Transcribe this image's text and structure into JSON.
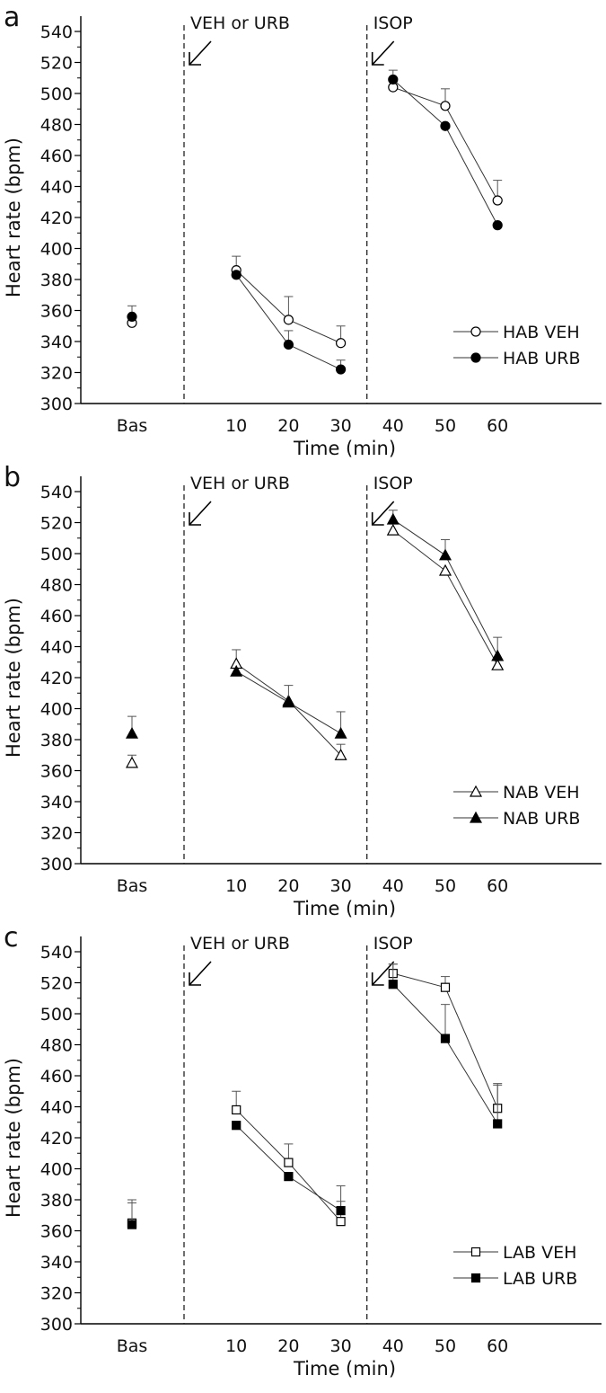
{
  "chart_data": [
    {
      "type": "line",
      "panel_label": "a",
      "ylabel": "Heart rate (bpm)",
      "xlabel": "Time (min)",
      "ylim": [
        300,
        540
      ],
      "yticks": [
        300,
        320,
        340,
        360,
        380,
        400,
        420,
        440,
        460,
        480,
        500,
        520,
        540
      ],
      "xticks": [
        {
          "label": "Bas",
          "value": -10
        },
        {
          "label": "10",
          "value": 10
        },
        {
          "label": "20",
          "value": 20
        },
        {
          "label": "30",
          "value": 30
        },
        {
          "label": "40",
          "value": 40
        },
        {
          "label": "50",
          "value": 50
        },
        {
          "label": "60",
          "value": 60
        }
      ],
      "annotations": [
        {
          "text": "VEH or URB",
          "x": 0
        },
        {
          "text": "ISOP",
          "x": 35
        }
      ],
      "legend_position": "bottom-right",
      "marker": "circle",
      "series": [
        {
          "name": "HAB VEH",
          "filled": false,
          "points": [
            {
              "x": -10,
              "y": 352,
              "err": 0,
              "connected": false
            },
            {
              "x": 10,
              "y": 386,
              "err": 9
            },
            {
              "x": 20,
              "y": 354,
              "err": 15
            },
            {
              "x": 30,
              "y": 339,
              "err": 11
            },
            {
              "x": 40,
              "y": 504,
              "err": 0
            },
            {
              "x": 50,
              "y": 492,
              "err": 11
            },
            {
              "x": 60,
              "y": 431,
              "err": 13
            }
          ]
        },
        {
          "name": "HAB URB",
          "filled": true,
          "points": [
            {
              "x": -10,
              "y": 356,
              "err": 7,
              "connected": false
            },
            {
              "x": 10,
              "y": 383,
              "err": 0
            },
            {
              "x": 20,
              "y": 338,
              "err": 9
            },
            {
              "x": 30,
              "y": 322,
              "err": 6
            },
            {
              "x": 40,
              "y": 509,
              "err": 6
            },
            {
              "x": 50,
              "y": 479,
              "err": 0
            },
            {
              "x": 60,
              "y": 415,
              "err": 0
            }
          ]
        }
      ]
    },
    {
      "type": "line",
      "panel_label": "b",
      "ylabel": "Heart rate (bpm)",
      "xlabel": "Time (min)",
      "ylim": [
        300,
        540
      ],
      "yticks": [
        300,
        320,
        340,
        360,
        380,
        400,
        420,
        440,
        460,
        480,
        500,
        520,
        540
      ],
      "xticks": [
        {
          "label": "Bas",
          "value": -10
        },
        {
          "label": "10",
          "value": 10
        },
        {
          "label": "20",
          "value": 20
        },
        {
          "label": "30",
          "value": 30
        },
        {
          "label": "40",
          "value": 40
        },
        {
          "label": "50",
          "value": 50
        },
        {
          "label": "60",
          "value": 60
        }
      ],
      "annotations": [
        {
          "text": "VEH or URB",
          "x": 0
        },
        {
          "text": "ISOP",
          "x": 35
        }
      ],
      "legend_position": "bottom-right",
      "marker": "triangle",
      "series": [
        {
          "name": "NAB VEH",
          "filled": false,
          "points": [
            {
              "x": -10,
              "y": 365,
              "err": 5,
              "connected": false
            },
            {
              "x": 10,
              "y": 429,
              "err": 9
            },
            {
              "x": 20,
              "y": 405,
              "err": 0
            },
            {
              "x": 30,
              "y": 370,
              "err": 7
            },
            {
              "x": 40,
              "y": 515,
              "err": 0
            },
            {
              "x": 50,
              "y": 489,
              "err": 0
            },
            {
              "x": 60,
              "y": 428,
              "err": 0
            }
          ]
        },
        {
          "name": "NAB URB",
          "filled": true,
          "points": [
            {
              "x": -10,
              "y": 384,
              "err": 11,
              "connected": false
            },
            {
              "x": 10,
              "y": 424,
              "err": 0
            },
            {
              "x": 20,
              "y": 404,
              "err": 11
            },
            {
              "x": 30,
              "y": 384,
              "err": 14
            },
            {
              "x": 40,
              "y": 522,
              "err": 6
            },
            {
              "x": 50,
              "y": 499,
              "err": 10
            },
            {
              "x": 60,
              "y": 434,
              "err": 12
            }
          ]
        }
      ]
    },
    {
      "type": "line",
      "panel_label": "c",
      "ylabel": "Heart rate (bpm)",
      "xlabel": "Time (min)",
      "ylim": [
        300,
        540
      ],
      "yticks": [
        300,
        320,
        340,
        360,
        380,
        400,
        420,
        440,
        460,
        480,
        500,
        520,
        540
      ],
      "xticks": [
        {
          "label": "Bas",
          "value": -10
        },
        {
          "label": "10",
          "value": 10
        },
        {
          "label": "20",
          "value": 20
        },
        {
          "label": "30",
          "value": 30
        },
        {
          "label": "40",
          "value": 40
        },
        {
          "label": "50",
          "value": 50
        },
        {
          "label": "60",
          "value": 60
        }
      ],
      "annotations": [
        {
          "text": "VEH or URB",
          "x": 0
        },
        {
          "text": "ISOP",
          "x": 35
        }
      ],
      "legend_position": "bottom-right",
      "marker": "square",
      "series": [
        {
          "name": "LAB VEH",
          "filled": false,
          "points": [
            {
              "x": -10,
              "y": 365,
              "err": 15,
              "connected": false
            },
            {
              "x": 10,
              "y": 438,
              "err": 12
            },
            {
              "x": 20,
              "y": 404,
              "err": 12
            },
            {
              "x": 30,
              "y": 366,
              "err": 23
            },
            {
              "x": 40,
              "y": 526,
              "err": 6
            },
            {
              "x": 50,
              "y": 517,
              "err": 7
            },
            {
              "x": 60,
              "y": 439,
              "err": 16
            }
          ]
        },
        {
          "name": "LAB URB",
          "filled": true,
          "points": [
            {
              "x": -10,
              "y": 364,
              "err": 14,
              "connected": false
            },
            {
              "x": 10,
              "y": 428,
              "err": 0
            },
            {
              "x": 20,
              "y": 395,
              "err": 0
            },
            {
              "x": 30,
              "y": 373,
              "err": 6
            },
            {
              "x": 40,
              "y": 519,
              "err": 13
            },
            {
              "x": 50,
              "y": 484,
              "err": 22
            },
            {
              "x": 60,
              "y": 429,
              "err": 25
            }
          ]
        }
      ]
    }
  ]
}
